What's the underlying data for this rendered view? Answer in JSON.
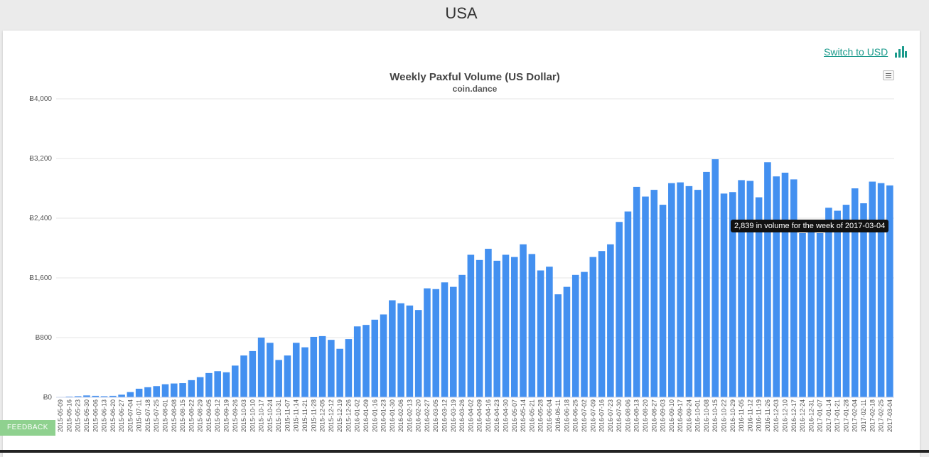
{
  "page": {
    "title": "USA"
  },
  "switch": {
    "label": "Switch to USD",
    "icon": "bar-chart-icon"
  },
  "feedback": {
    "label": "FEEDBACK"
  },
  "colors": {
    "bar": "#4390f0",
    "grid": "#e6e6e6",
    "link": "#1a9a8b"
  },
  "tooltip": {
    "text": "2,839 in volume for the week of 2017-03-04"
  },
  "chart_data": {
    "type": "bar",
    "title": "Weekly Paxful Volume (US Dollar)",
    "subtitle": "coin.dance",
    "ylim": [
      0,
      4000
    ],
    "y_ticks": [
      {
        "value": 0,
        "label": "Ƀ0"
      },
      {
        "value": 800,
        "label": "Ƀ800"
      },
      {
        "value": 1600,
        "label": "Ƀ1,600"
      },
      {
        "value": 2400,
        "label": "Ƀ2,400"
      },
      {
        "value": 3200,
        "label": "Ƀ3,200"
      },
      {
        "value": 4000,
        "label": "Ƀ4,000"
      }
    ],
    "grid": true,
    "legend": "none",
    "categories": [
      "2015-05-09",
      "2015-05-16",
      "2015-05-23",
      "2015-05-30",
      "2015-06-06",
      "2015-06-13",
      "2015-06-20",
      "2015-06-27",
      "2015-07-04",
      "2015-07-11",
      "2015-07-18",
      "2015-07-25",
      "2015-08-01",
      "2015-08-08",
      "2015-08-15",
      "2015-08-22",
      "2015-08-29",
      "2015-09-05",
      "2015-09-12",
      "2015-09-19",
      "2015-09-26",
      "2015-10-03",
      "2015-10-10",
      "2015-10-17",
      "2015-10-24",
      "2015-10-31",
      "2015-11-07",
      "2015-11-14",
      "2015-11-21",
      "2015-11-28",
      "2015-12-05",
      "2015-12-12",
      "2015-12-19",
      "2015-12-26",
      "2016-01-02",
      "2016-01-09",
      "2016-01-16",
      "2016-01-23",
      "2016-01-30",
      "2016-02-06",
      "2016-02-13",
      "2016-02-20",
      "2016-02-27",
      "2016-03-05",
      "2016-03-12",
      "2016-03-19",
      "2016-03-26",
      "2016-04-02",
      "2016-04-09",
      "2016-04-16",
      "2016-04-23",
      "2016-04-30",
      "2016-05-07",
      "2016-05-14",
      "2016-05-21",
      "2016-05-28",
      "2016-06-04",
      "2016-06-11",
      "2016-06-18",
      "2016-06-25",
      "2016-07-02",
      "2016-07-09",
      "2016-07-16",
      "2016-07-23",
      "2016-07-30",
      "2016-08-06",
      "2016-08-13",
      "2016-08-20",
      "2016-08-27",
      "2016-09-03",
      "2016-09-10",
      "2016-09-17",
      "2016-09-24",
      "2016-10-01",
      "2016-10-08",
      "2016-10-15",
      "2016-10-22",
      "2016-10-29",
      "2016-11-05",
      "2016-11-12",
      "2016-11-19",
      "2016-11-26",
      "2016-12-03",
      "2016-12-10",
      "2016-12-17",
      "2016-12-24",
      "2016-12-31",
      "2017-01-07",
      "2017-01-14",
      "2017-01-21",
      "2017-01-28",
      "2017-02-04",
      "2017-02-11",
      "2017-02-18",
      "2017-02-25",
      "2017-03-04"
    ],
    "values": [
      5,
      10,
      15,
      25,
      20,
      15,
      20,
      35,
      70,
      115,
      135,
      150,
      175,
      185,
      190,
      230,
      270,
      325,
      350,
      335,
      425,
      560,
      620,
      800,
      730,
      500,
      560,
      730,
      670,
      810,
      820,
      770,
      650,
      780,
      950,
      970,
      1040,
      1110,
      1300,
      1260,
      1230,
      1170,
      1460,
      1450,
      1540,
      1480,
      1640,
      1910,
      1840,
      1990,
      1830,
      1910,
      1880,
      2050,
      1920,
      1700,
      1750,
      1380,
      1480,
      1640,
      1680,
      1880,
      1960,
      2050,
      2350,
      2490,
      2820,
      2690,
      2780,
      2580,
      2870,
      2880,
      2830,
      2780,
      3020,
      3190,
      2730,
      2750,
      2910,
      2900,
      2680,
      3150,
      2960,
      3010,
      2920,
      2200,
      2220,
      2200,
      2540,
      2500,
      2580,
      2800,
      2600,
      2890,
      2870,
      2839
    ]
  }
}
